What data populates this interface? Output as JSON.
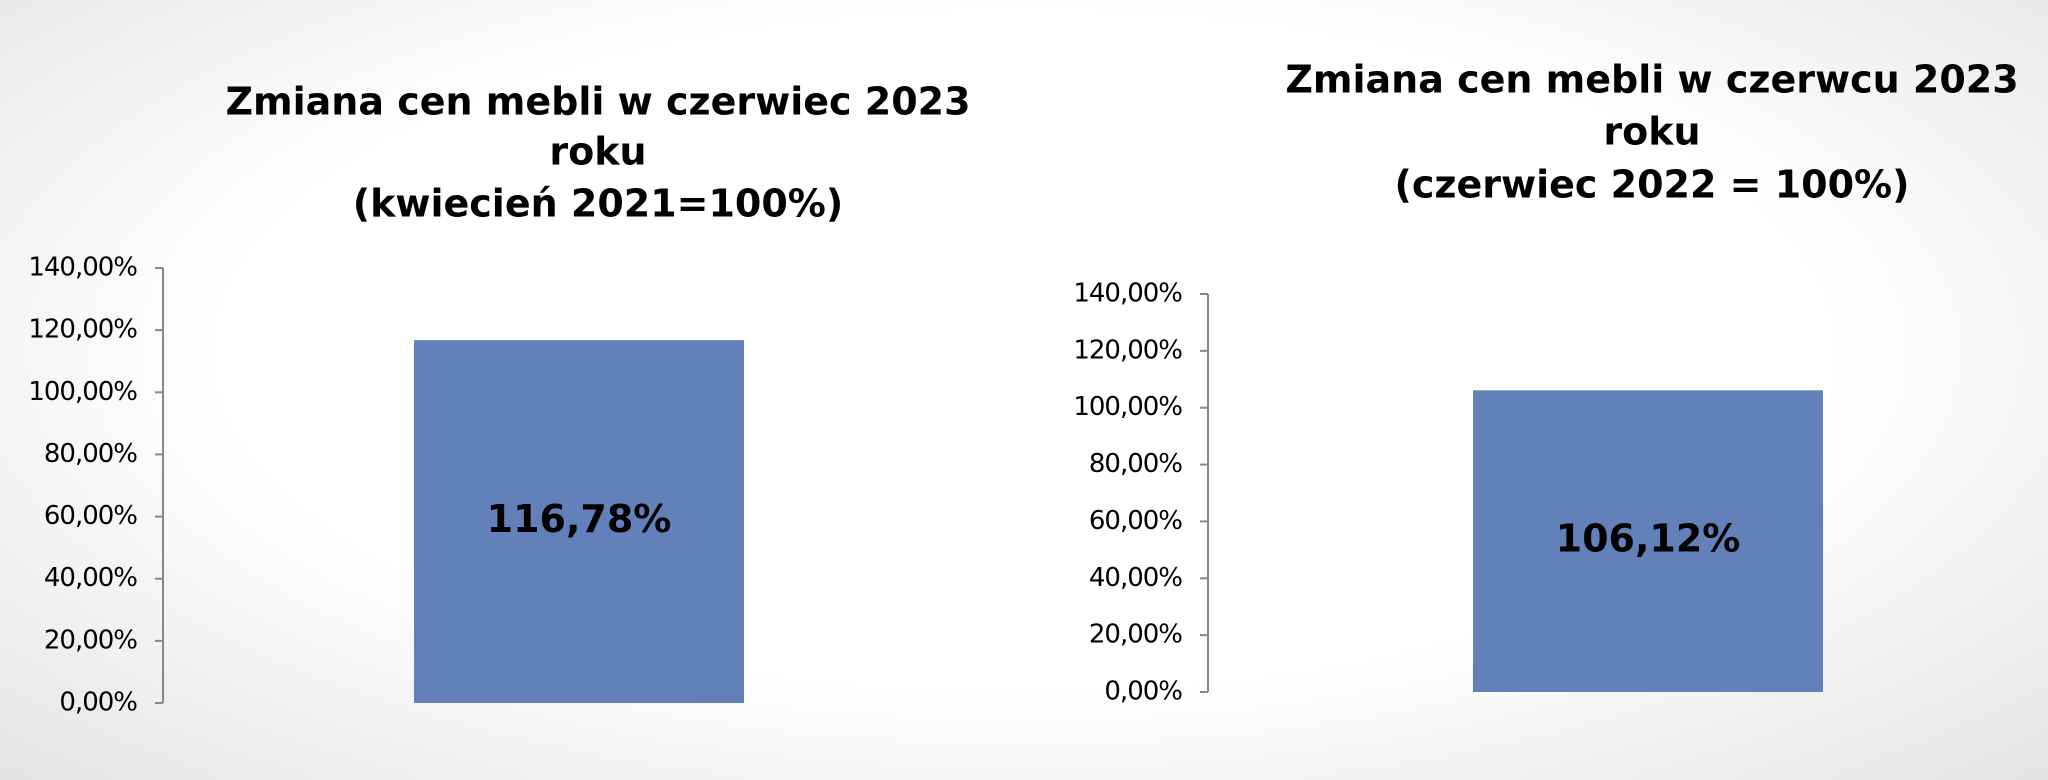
{
  "chart_data": [
    {
      "type": "bar",
      "title": [
        "Zmiana cen mebli w czerwiec 2023",
        "roku",
        "(kwiecień 2021=100%)"
      ],
      "values": [
        116.78
      ],
      "value_labels": [
        "116,78%"
      ],
      "color": "#6280ba",
      "ylim": [
        0,
        140
      ],
      "yticks": [
        {
          "value": 0,
          "label": "0,00%"
        },
        {
          "value": 20,
          "label": "20,00%"
        },
        {
          "value": 40,
          "label": "40,00%"
        },
        {
          "value": 60,
          "label": "60,00%"
        },
        {
          "value": 80,
          "label": "80,00%"
        },
        {
          "value": 100,
          "label": "100,00%"
        },
        {
          "value": 120,
          "label": "120,00%"
        },
        {
          "value": 140,
          "label": "140,00%"
        }
      ]
    },
    {
      "type": "bar",
      "title": [
        "Zmiana cen mebli w czerwcu 2023",
        "roku",
        "(czerwiec 2022 = 100%)"
      ],
      "values": [
        106.12
      ],
      "value_labels": [
        "106,12%"
      ],
      "color": "#6280ba",
      "ylim": [
        0,
        140
      ],
      "yticks": [
        {
          "value": 0,
          "label": "0,00%"
        },
        {
          "value": 20,
          "label": "20,00%"
        },
        {
          "value": 40,
          "label": "40,00%"
        },
        {
          "value": 60,
          "label": "60,00%"
        },
        {
          "value": 80,
          "label": "80,00%"
        },
        {
          "value": 100,
          "label": "100,00%"
        },
        {
          "value": 120,
          "label": "120,00%"
        },
        {
          "value": 140,
          "label": "140,00%"
        }
      ]
    }
  ]
}
